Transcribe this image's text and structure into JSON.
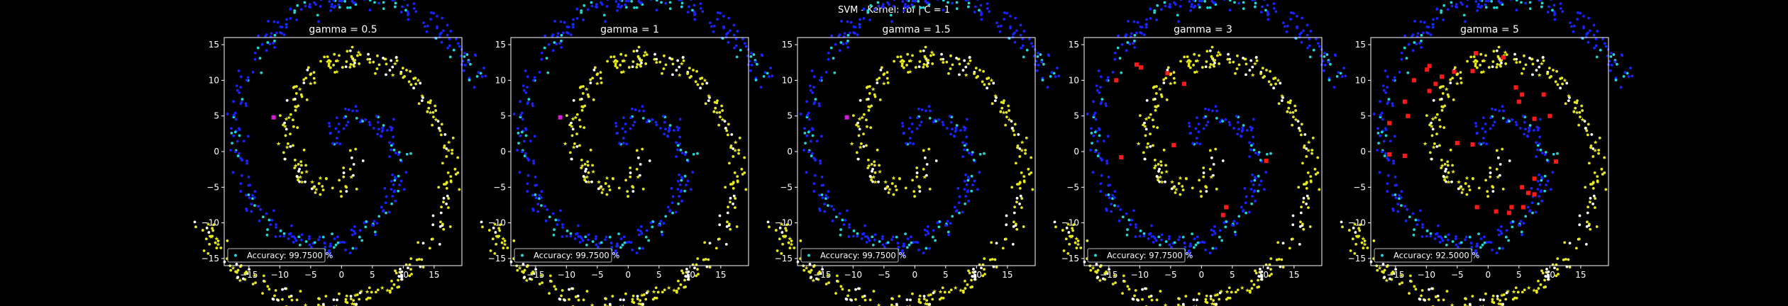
{
  "figure": {
    "suptitle": "SVM - Kernel: rbf | C = 1"
  },
  "colors": {
    "background": "#000000",
    "class_a_train": "#1a22ff",
    "class_a_test": "#22d6d6",
    "class_b_train": "#e8e81e",
    "class_b_test": "#ffffff",
    "misclassified": "#ff1a1a",
    "misclassified_alt": "#d61ad6"
  },
  "chart_data": [
    {
      "type": "scatter",
      "title": "gamma = 0.5",
      "accuracy_label": "Accuracy: 99.7500 %",
      "accuracy": 99.75,
      "xlim": [
        -19,
        19.5
      ],
      "ylim": [
        -16,
        16
      ],
      "xticks": [
        -15,
        -10,
        -5,
        0,
        5,
        10,
        15
      ],
      "yticks": [
        -15,
        -10,
        -5,
        0,
        5,
        10,
        15
      ],
      "legend_position": "lower-left",
      "misclassified_points": [
        [
          -11,
          4.8
        ]
      ]
    },
    {
      "type": "scatter",
      "title": "gamma = 1",
      "accuracy_label": "Accuracy: 99.7500 %",
      "accuracy": 99.75,
      "xlim": [
        -19,
        19.5
      ],
      "ylim": [
        -16,
        16
      ],
      "xticks": [
        -15,
        -10,
        -5,
        0,
        5,
        10,
        15
      ],
      "yticks": [
        -15,
        -10,
        -5,
        0,
        5,
        10,
        15
      ],
      "legend_position": "lower-left",
      "misclassified_points": [
        [
          -11,
          4.8
        ]
      ]
    },
    {
      "type": "scatter",
      "title": "gamma = 1.5",
      "accuracy_label": "Accuracy: 99.7500 %",
      "accuracy": 99.75,
      "xlim": [
        -19,
        19.5
      ],
      "ylim": [
        -16,
        16
      ],
      "xticks": [
        -15,
        -10,
        -5,
        0,
        5,
        10,
        15
      ],
      "yticks": [
        -15,
        -10,
        -5,
        0,
        5,
        10,
        15
      ],
      "legend_position": "lower-left",
      "misclassified_points": [
        [
          -11,
          4.8
        ]
      ]
    },
    {
      "type": "scatter",
      "title": "gamma = 3",
      "accuracy_label": "Accuracy: 97.7500 %",
      "accuracy": 97.75,
      "xlim": [
        -19,
        19.5
      ],
      "ylim": [
        -16,
        16
      ],
      "xticks": [
        -15,
        -10,
        -5,
        0,
        5,
        10,
        15
      ],
      "yticks": [
        -15,
        -10,
        -5,
        0,
        5,
        10,
        15
      ],
      "legend_position": "lower-left",
      "misclassified_points": [
        [
          -10.5,
          12.2
        ],
        [
          -9.8,
          11.8
        ],
        [
          -5.5,
          11
        ],
        [
          -2.8,
          9.5
        ],
        [
          -13.8,
          10
        ],
        [
          -4.5,
          0.9
        ],
        [
          -13,
          -0.8
        ],
        [
          10.5,
          -1.3
        ],
        [
          4,
          -7.8
        ],
        [
          3.5,
          -8.9
        ]
      ]
    },
    {
      "type": "scatter",
      "title": "gamma = 5",
      "accuracy_label": "Accuracy: 92.5000 %",
      "accuracy": 92.5,
      "xlim": [
        -19,
        19.5
      ],
      "ylim": [
        -16,
        16
      ],
      "xticks": [
        -15,
        -10,
        -5,
        0,
        5,
        10,
        15
      ],
      "yticks": [
        -15,
        -10,
        -5,
        0,
        5,
        10,
        15
      ],
      "legend_position": "lower-left",
      "misclassified_points": [
        [
          -2,
          13.8
        ],
        [
          2.5,
          13.2
        ],
        [
          -9.5,
          12
        ],
        [
          -9.9,
          11.5
        ],
        [
          -5.5,
          11.2
        ],
        [
          -2.5,
          11.3
        ],
        [
          -7.5,
          10.5
        ],
        [
          -12,
          10
        ],
        [
          -8.5,
          9.5
        ],
        [
          4.5,
          9
        ],
        [
          5.5,
          8
        ],
        [
          5,
          7
        ],
        [
          9,
          8
        ],
        [
          10,
          5
        ],
        [
          7.5,
          4.6
        ],
        [
          -9.5,
          8.5
        ],
        [
          -13.5,
          7
        ],
        [
          -16,
          4
        ],
        [
          -13,
          5
        ],
        [
          -2.5,
          1
        ],
        [
          -5,
          1.2
        ],
        [
          -13.5,
          -0.6
        ],
        [
          -16,
          -0.4
        ],
        [
          11,
          -1.4
        ],
        [
          7.5,
          -3.8
        ],
        [
          6.5,
          -5.8
        ],
        [
          7.5,
          -6
        ],
        [
          5.5,
          -5
        ],
        [
          3.8,
          -7.8
        ],
        [
          3.4,
          -8.6
        ],
        [
          1.3,
          -8.4
        ],
        [
          -1.8,
          -7.8
        ],
        [
          5.7,
          -7.8
        ]
      ]
    }
  ]
}
